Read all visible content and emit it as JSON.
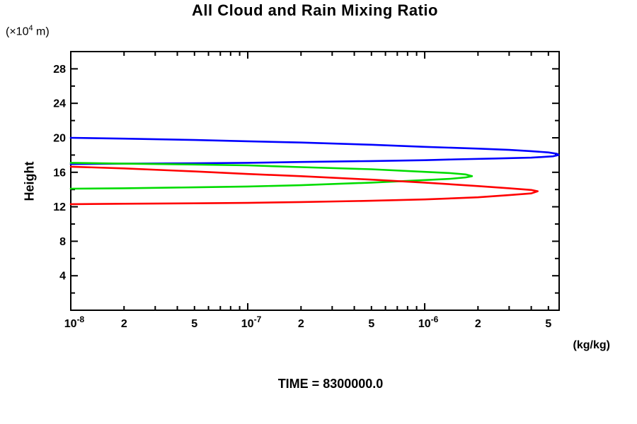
{
  "title": "All Cloud and Rain Mixing Ratio",
  "time_label": "TIME = 8300000.0",
  "chart_data": {
    "type": "line",
    "title": "All Cloud and Rain Mixing Ratio",
    "footer": "TIME = 8300000.0",
    "x_scale": "log",
    "xlim": [
      1e-08,
      5.75e-06
    ],
    "ylim": [
      0,
      30
    ],
    "xlabel_unit": "(kg/kg)",
    "ylabel": "Height",
    "y_unit": {
      "prefix": "(×10",
      "sup": "4",
      "suffix": " m)"
    },
    "grid": false,
    "legend": "none",
    "x_labeled_ticks": [
      {
        "value": 1e-08,
        "base": "10",
        "sup": "-8"
      },
      {
        "value": 2e-08,
        "base": "2"
      },
      {
        "value": 5e-08,
        "base": "5"
      },
      {
        "value": 1e-07,
        "base": "10",
        "sup": "-7"
      },
      {
        "value": 2e-07,
        "base": "2"
      },
      {
        "value": 5e-07,
        "base": "5"
      },
      {
        "value": 1e-06,
        "base": "10",
        "sup": "-6"
      },
      {
        "value": 2e-06,
        "base": "2"
      },
      {
        "value": 5e-06,
        "base": "5"
      }
    ],
    "y_major_ticks": [
      4,
      8,
      12,
      16,
      20,
      24,
      28
    ],
    "y_minor_ticks": [
      2,
      6,
      10,
      14,
      18,
      22,
      26
    ],
    "series": [
      {
        "name": "blue-profile",
        "color": "#0000ff",
        "points": [
          [
            1e-08,
            20.0
          ],
          [
            2e-08,
            19.9
          ],
          [
            5e-08,
            19.75
          ],
          [
            1e-07,
            19.6
          ],
          [
            2e-07,
            19.45
          ],
          [
            5e-07,
            19.2
          ],
          [
            1e-06,
            18.95
          ],
          [
            2e-06,
            18.75
          ],
          [
            3e-06,
            18.6
          ],
          [
            4e-06,
            18.45
          ],
          [
            5e-06,
            18.3
          ],
          [
            5.6e-06,
            18.15
          ],
          [
            5.7e-06,
            18.0
          ],
          [
            5.3e-06,
            17.85
          ],
          [
            4e-06,
            17.7
          ],
          [
            2.5e-06,
            17.6
          ],
          [
            1.5e-06,
            17.5
          ],
          [
            1e-06,
            17.4
          ],
          [
            5e-07,
            17.3
          ],
          [
            2e-07,
            17.2
          ],
          [
            1e-07,
            17.1
          ],
          [
            5e-08,
            17.05
          ],
          [
            2e-08,
            17.0
          ],
          [
            1e-08,
            16.95
          ]
        ]
      },
      {
        "name": "green-profile",
        "color": "#00dc00",
        "points": [
          [
            1e-08,
            17.1
          ],
          [
            2e-08,
            17.0
          ],
          [
            5e-08,
            16.9
          ],
          [
            1e-07,
            16.8
          ],
          [
            2e-07,
            16.6
          ],
          [
            5e-07,
            16.35
          ],
          [
            1e-06,
            16.05
          ],
          [
            1.4e-06,
            15.9
          ],
          [
            1.7e-06,
            15.75
          ],
          [
            1.85e-06,
            15.55
          ],
          [
            1.7e-06,
            15.4
          ],
          [
            1.4e-06,
            15.25
          ],
          [
            1e-06,
            15.1
          ],
          [
            5e-07,
            14.8
          ],
          [
            2e-07,
            14.5
          ],
          [
            1e-07,
            14.35
          ],
          [
            5e-08,
            14.25
          ],
          [
            2e-08,
            14.15
          ],
          [
            1e-08,
            14.1
          ]
        ]
      },
      {
        "name": "red-profile",
        "color": "#ff0000",
        "points": [
          [
            1e-08,
            16.65
          ],
          [
            2e-08,
            16.45
          ],
          [
            5e-08,
            16.1
          ],
          [
            1e-07,
            15.8
          ],
          [
            2e-07,
            15.55
          ],
          [
            5e-07,
            15.15
          ],
          [
            1e-06,
            14.8
          ],
          [
            2e-06,
            14.4
          ],
          [
            3e-06,
            14.15
          ],
          [
            4e-06,
            13.95
          ],
          [
            4.35e-06,
            13.8
          ],
          [
            4e-06,
            13.55
          ],
          [
            3e-06,
            13.35
          ],
          [
            2e-06,
            13.1
          ],
          [
            1e-06,
            12.85
          ],
          [
            5e-07,
            12.7
          ],
          [
            2e-07,
            12.55
          ],
          [
            1e-07,
            12.45
          ],
          [
            5e-08,
            12.4
          ],
          [
            2e-08,
            12.35
          ],
          [
            1e-08,
            12.3
          ]
        ]
      }
    ]
  }
}
